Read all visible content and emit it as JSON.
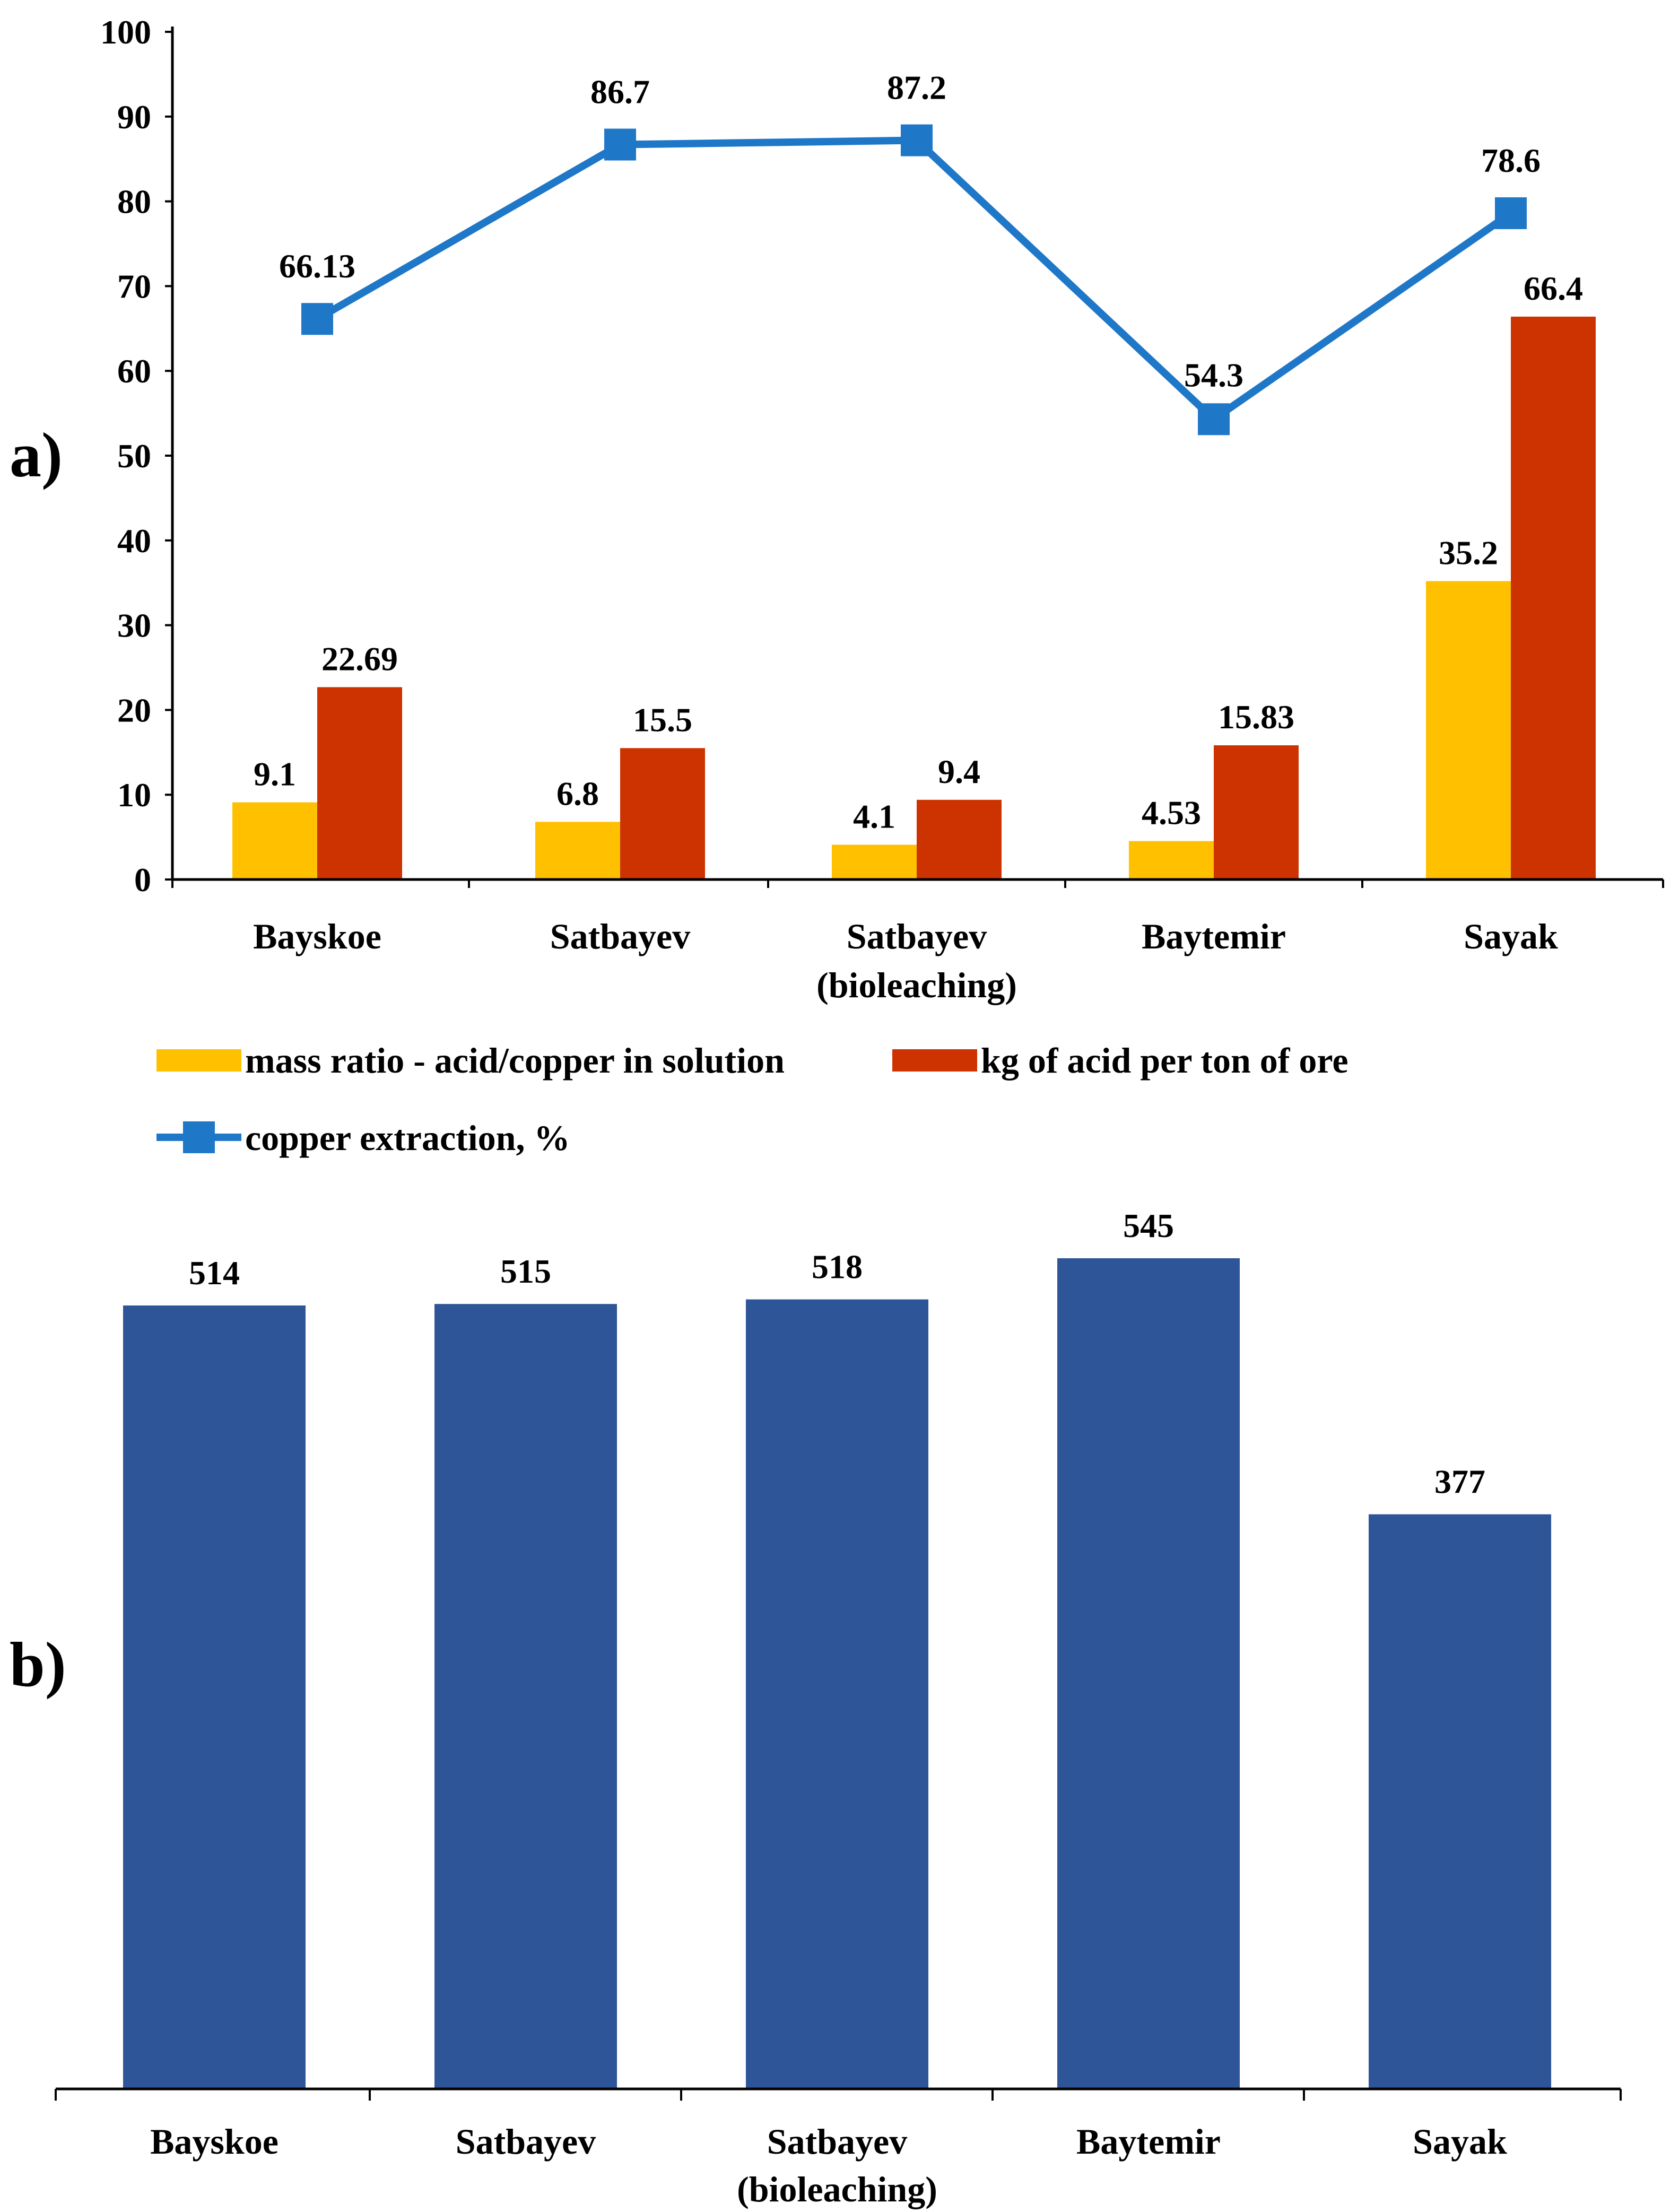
{
  "panel_a_label": "a)",
  "panel_b_label": "b)",
  "colors": {
    "mass_ratio": "#FFC000",
    "acid_per_ton": "#CC3300",
    "extraction": "#1F77C8",
    "panel_b_bar": "#2E5597",
    "axis": "#000000"
  },
  "chart_data": [
    {
      "type": "bar+line",
      "panel": "a",
      "categories": [
        [
          "Bayskoe"
        ],
        [
          "Satbayev"
        ],
        [
          "Satbayev",
          "(bioleaching)"
        ],
        [
          "Baytemir"
        ],
        [
          "Sayak"
        ]
      ],
      "ylim": [
        0,
        100
      ],
      "yticks": [
        0,
        10,
        20,
        30,
        40,
        50,
        60,
        70,
        80,
        90,
        100
      ],
      "series": [
        {
          "name": "mass ratio - acid/copper in solution",
          "kind": "bar",
          "values": [
            9.1,
            6.8,
            4.1,
            4.53,
            35.2
          ],
          "labels": [
            "9.1",
            "6.8",
            "4.1",
            "4.53",
            "35.2"
          ]
        },
        {
          "name": "kg of acid per ton of ore",
          "kind": "bar",
          "values": [
            22.69,
            15.5,
            9.4,
            15.83,
            66.4
          ],
          "labels": [
            "22.69",
            "15.5",
            "9.4",
            "15.83",
            "66.4"
          ]
        },
        {
          "name": "copper extraction, %",
          "kind": "line",
          "marker": "square",
          "values": [
            66.13,
            86.7,
            87.2,
            54.3,
            78.6
          ],
          "labels": [
            "66.13",
            "86.7",
            "87.2",
            "54.3",
            "78.6"
          ]
        }
      ],
      "legend": [
        "mass ratio - acid/copper in solution",
        "kg of acid per ton of ore",
        "copper extraction, %"
      ],
      "legend_position": "bottom",
      "grid": false
    },
    {
      "type": "bar",
      "panel": "b",
      "categories": [
        [
          "Bayskoe"
        ],
        [
          "Satbayev"
        ],
        [
          "Satbayev",
          "(bioleaching)"
        ],
        [
          "Baytemir"
        ],
        [
          "Sayak"
        ]
      ],
      "values": [
        514,
        515,
        518,
        545,
        377
      ],
      "labels": [
        "514",
        "515",
        "518",
        "545",
        "377"
      ],
      "ylim": [
        0,
        600
      ],
      "y_axis_visible": false,
      "grid": false
    }
  ]
}
